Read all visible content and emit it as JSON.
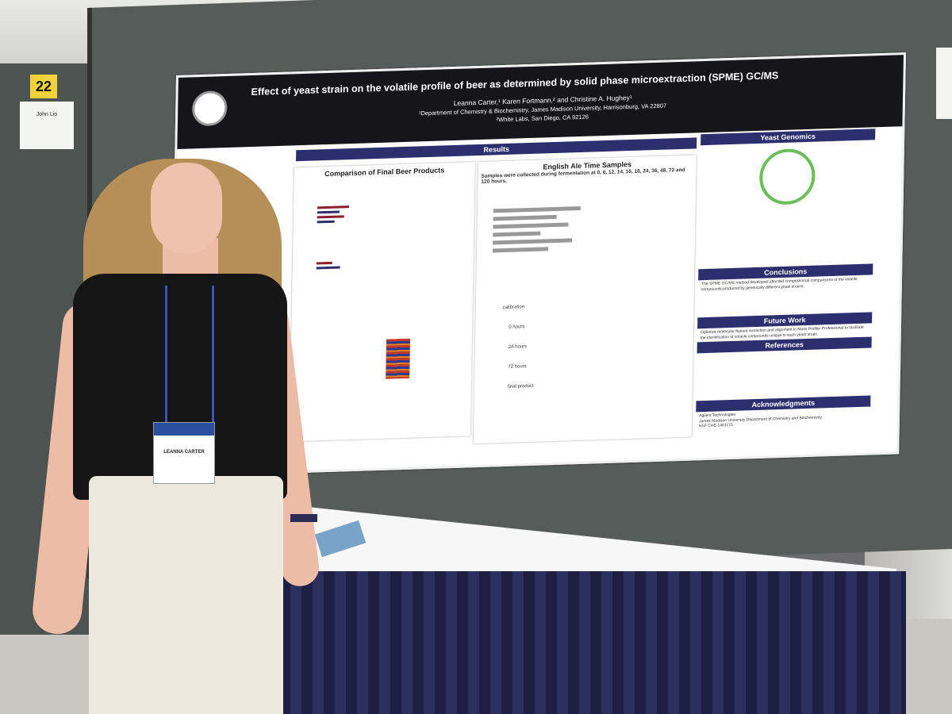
{
  "booth": {
    "number": "22",
    "name_card_text": "John Lio"
  },
  "poster": {
    "title": "Effect of yeast strain on the volatile profile of beer as determined by solid phase microextraction (SPME) GC/MS",
    "authors": "Leanna Carter,¹ Karen Fortmann,² and Christine A. Hughey¹",
    "affiliation_1": "¹Department of Chemistry & Biochemistry, James Madison University, Harrisonburg, VA 22807",
    "affiliation_2": "²White Labs, San Diego, CA 92126",
    "sections": {
      "results": "Results",
      "comparison": "Comparison of Final Beer Products",
      "english_ale": "English Ale Time Samples",
      "english_ale_sub": "Samples were collected during fermentation at 0, 6, 12, 14, 16, 18, 24, 36, 48, 72 and 120 hours.",
      "yeast_genomics": "Yeast Genomics",
      "conclusions": "Conclusions",
      "future_work": "Future Work",
      "references": "References",
      "acknowledgments": "Acknowledgments"
    },
    "chromatogram_labels": [
      "calibration",
      "0 hours",
      "24 hours",
      "72 hours",
      "final product"
    ],
    "conclusions_text": "The SPME GC/MS method developed afforded compositional comparisons of the volatile compounds produced by genetically different yeast strains.",
    "future_work_text": "Optimize molecular feature extraction and alignment in Mass Profiler Professional to facilitate the identification of volatile compounds unique to each yeast strain.",
    "acknowledgments_text": "Agilent Technologies\nJames Madison University Department of Chemistry and Biochemistry\nNSF CHE-1461175"
  },
  "presenter_badge": {
    "name": "LEANNA CARTER"
  }
}
